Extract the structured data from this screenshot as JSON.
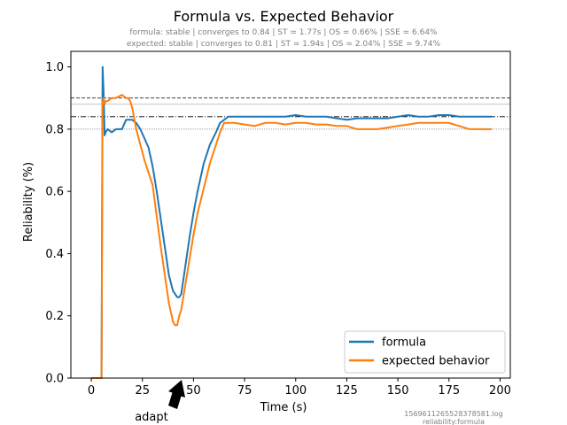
{
  "figure": {
    "title": "Formula vs. Expected Behavior",
    "subtitles": [
      "formula: stable | converges to 0.84 | ST = 1.77s | OS = 0.66% | SSE = 6.64%",
      "expected: stable | converges to 0.81 | ST = 1.94s | OS = 2.04% | SSE = 9.74%"
    ],
    "footer": [
      "1569611265528378581.log",
      "reliability:formula"
    ],
    "annotation": "adapt"
  },
  "chart_data": {
    "type": "line",
    "title": "Formula vs. Expected Behavior",
    "xlabel": "Time (s)",
    "ylabel": "Reliability (%)",
    "xlim": [
      -10,
      205
    ],
    "ylim": [
      0,
      1.05
    ],
    "x_ticks": [
      0,
      25,
      50,
      75,
      100,
      125,
      150,
      175,
      200
    ],
    "y_ticks": [
      0.0,
      0.2,
      0.4,
      0.6,
      0.8,
      1.0
    ],
    "x_tick_labels": [
      "0",
      "25",
      "50",
      "75",
      "100",
      "125",
      "150",
      "175",
      "200"
    ],
    "y_tick_labels": [
      "0.0",
      "0.2",
      "0.4",
      "0.6",
      "0.8",
      "1.0"
    ],
    "grid": false,
    "legend_position": "lower right",
    "reference_lines": [
      {
        "y": 0.9,
        "style": "dashed",
        "color": "#000000"
      },
      {
        "y": 0.88,
        "style": "solid",
        "color": "#b0b0b0"
      },
      {
        "y": 0.84,
        "style": "dashdot",
        "color": "#000000"
      },
      {
        "y": 0.8,
        "style": "dotted",
        "color": "#808080"
      }
    ],
    "annotation": {
      "text": "adapt",
      "x": 43
    },
    "series": [
      {
        "name": "formula",
        "color": "#1f77b4",
        "x": [
          0,
          5,
          5.5,
          6,
          6.5,
          7,
          8,
          10,
          12,
          15,
          17,
          18,
          19,
          20,
          22,
          24,
          26,
          28,
          30,
          32,
          34,
          36,
          38,
          40,
          41,
          42,
          43,
          44,
          46,
          48,
          50,
          52,
          55,
          58,
          61,
          63,
          65,
          67,
          70,
          75,
          80,
          85,
          90,
          95,
          100,
          105,
          110,
          115,
          120,
          125,
          130,
          135,
          140,
          145,
          150,
          155,
          160,
          165,
          170,
          175,
          180,
          185,
          190,
          196
        ],
        "y": [
          0.0,
          0.0,
          1.0,
          0.92,
          0.78,
          0.79,
          0.8,
          0.79,
          0.8,
          0.8,
          0.83,
          0.83,
          0.83,
          0.83,
          0.82,
          0.8,
          0.77,
          0.74,
          0.68,
          0.6,
          0.51,
          0.42,
          0.33,
          0.28,
          0.27,
          0.26,
          0.26,
          0.27,
          0.36,
          0.45,
          0.53,
          0.6,
          0.69,
          0.75,
          0.79,
          0.82,
          0.83,
          0.84,
          0.84,
          0.84,
          0.84,
          0.84,
          0.84,
          0.84,
          0.845,
          0.84,
          0.84,
          0.84,
          0.835,
          0.83,
          0.835,
          0.835,
          0.835,
          0.835,
          0.84,
          0.845,
          0.84,
          0.84,
          0.845,
          0.845,
          0.84,
          0.84,
          0.84,
          0.84
        ]
      },
      {
        "name": "expected behavior",
        "color": "#ff7f0e",
        "x": [
          0,
          5,
          5.5,
          6,
          6.5,
          7,
          8,
          10,
          12,
          15,
          17,
          18,
          19,
          20,
          22,
          24,
          26,
          28,
          30,
          32,
          34,
          36,
          38,
          40,
          41,
          42,
          43,
          44,
          46,
          48,
          50,
          52,
          55,
          58,
          61,
          63,
          65,
          67,
          70,
          75,
          80,
          85,
          90,
          95,
          100,
          105,
          110,
          115,
          120,
          125,
          130,
          135,
          140,
          145,
          150,
          155,
          160,
          165,
          170,
          175,
          180,
          185,
          190,
          196
        ],
        "y": [
          0.0,
          0.0,
          0.88,
          0.9,
          0.88,
          0.89,
          0.89,
          0.9,
          0.9,
          0.91,
          0.9,
          0.9,
          0.89,
          0.87,
          0.8,
          0.75,
          0.7,
          0.66,
          0.62,
          0.52,
          0.42,
          0.33,
          0.24,
          0.18,
          0.17,
          0.17,
          0.2,
          0.22,
          0.3,
          0.38,
          0.46,
          0.53,
          0.61,
          0.69,
          0.75,
          0.79,
          0.82,
          0.82,
          0.82,
          0.815,
          0.81,
          0.82,
          0.82,
          0.815,
          0.82,
          0.82,
          0.815,
          0.815,
          0.81,
          0.81,
          0.8,
          0.8,
          0.8,
          0.805,
          0.81,
          0.815,
          0.82,
          0.82,
          0.82,
          0.82,
          0.81,
          0.8,
          0.8,
          0.8
        ]
      }
    ]
  }
}
